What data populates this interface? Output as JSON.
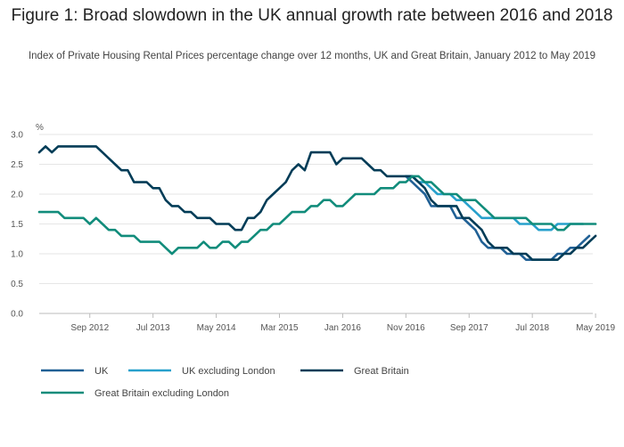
{
  "title": "Figure 1: Broad slowdown in the UK annual growth rate between 2016 and 2018",
  "subtitle": "Index of Private Housing Rental Prices percentage change over 12 months, UK and Great Britain, January 2012 to May 2019",
  "chart_data": {
    "type": "line",
    "ylabel": "%",
    "ylim": [
      0,
      3
    ],
    "yticks": [
      "0.0",
      "0.5",
      "1.0",
      "1.5",
      "2.0",
      "2.5",
      "3.0"
    ],
    "xticks": [
      {
        "label": "Sep 2012",
        "index": 8
      },
      {
        "label": "Jul 2013",
        "index": 18
      },
      {
        "label": "May 2014",
        "index": 28
      },
      {
        "label": "Mar 2015",
        "index": 38
      },
      {
        "label": "Jan 2016",
        "index": 48
      },
      {
        "label": "Nov 2016",
        "index": 58
      },
      {
        "label": "Sep 2017",
        "index": 68
      },
      {
        "label": "Jul 2018",
        "index": 78
      },
      {
        "label": "May 2019",
        "index": 88
      }
    ],
    "grid": true,
    "legend_position": "bottom",
    "x_start": "Jan 2012",
    "x_end": "May 2019",
    "series": [
      {
        "name": "UK",
        "color": "#206095",
        "values": [
          null,
          null,
          null,
          null,
          null,
          null,
          null,
          null,
          null,
          null,
          null,
          null,
          null,
          null,
          null,
          null,
          null,
          null,
          null,
          null,
          null,
          null,
          null,
          null,
          null,
          null,
          null,
          null,
          null,
          null,
          null,
          null,
          null,
          null,
          null,
          null,
          null,
          null,
          null,
          null,
          null,
          null,
          null,
          null,
          null,
          null,
          null,
          null,
          null,
          null,
          null,
          null,
          null,
          null,
          null,
          null,
          null,
          null,
          2.3,
          2.2,
          2.1,
          2.0,
          1.8,
          1.8,
          1.8,
          1.8,
          1.6,
          1.6,
          1.5,
          1.4,
          1.2,
          1.1,
          1.1,
          1.1,
          1.0,
          1.0,
          1.0,
          0.9,
          0.9,
          0.9,
          0.9,
          0.9,
          1.0,
          1.0,
          1.1,
          1.1,
          1.2,
          1.3
        ]
      },
      {
        "name": "UK excluding London",
        "color": "#27a0cc",
        "values": [
          null,
          null,
          null,
          null,
          null,
          null,
          null,
          null,
          null,
          null,
          null,
          null,
          null,
          null,
          null,
          null,
          null,
          null,
          null,
          null,
          null,
          null,
          null,
          null,
          null,
          null,
          null,
          null,
          null,
          null,
          null,
          null,
          null,
          null,
          null,
          null,
          null,
          null,
          null,
          null,
          null,
          null,
          null,
          null,
          null,
          null,
          null,
          null,
          null,
          null,
          null,
          null,
          null,
          null,
          null,
          null,
          null,
          null,
          2.3,
          2.3,
          2.2,
          2.2,
          2.1,
          2.0,
          2.0,
          2.0,
          1.9,
          1.9,
          1.8,
          1.7,
          1.6,
          1.6,
          1.6,
          1.6,
          1.6,
          1.6,
          1.5,
          1.5,
          1.5,
          1.4,
          1.4,
          1.4,
          1.5,
          1.5,
          1.5,
          1.5,
          1.5
        ]
      },
      {
        "name": "Great Britain",
        "color": "#003c57",
        "values": [
          2.7,
          2.8,
          2.7,
          2.8,
          2.8,
          2.8,
          2.8,
          2.8,
          2.8,
          2.8,
          2.7,
          2.6,
          2.5,
          2.4,
          2.4,
          2.2,
          2.2,
          2.2,
          2.1,
          2.1,
          1.9,
          1.8,
          1.8,
          1.7,
          1.7,
          1.6,
          1.6,
          1.6,
          1.5,
          1.5,
          1.5,
          1.4,
          1.4,
          1.6,
          1.6,
          1.7,
          1.9,
          2.0,
          2.1,
          2.2,
          2.4,
          2.5,
          2.4,
          2.7,
          2.7,
          2.7,
          2.7,
          2.5,
          2.6,
          2.6,
          2.6,
          2.6,
          2.5,
          2.4,
          2.4,
          2.3,
          2.3,
          2.3,
          2.3,
          2.3,
          2.2,
          2.1,
          1.9,
          1.8,
          1.8,
          1.8,
          1.8,
          1.6,
          1.6,
          1.5,
          1.4,
          1.2,
          1.1,
          1.1,
          1.1,
          1.0,
          1.0,
          1.0,
          0.9,
          0.9,
          0.9,
          0.9,
          0.9,
          1.0,
          1.0,
          1.1,
          1.1,
          1.2,
          1.3
        ]
      },
      {
        "name": "Great Britain excluding London",
        "color": "#118c7b",
        "values": [
          1.7,
          1.7,
          1.7,
          1.7,
          1.6,
          1.6,
          1.6,
          1.6,
          1.5,
          1.6,
          1.5,
          1.4,
          1.4,
          1.3,
          1.3,
          1.3,
          1.2,
          1.2,
          1.2,
          1.2,
          1.1,
          1.0,
          1.1,
          1.1,
          1.1,
          1.1,
          1.2,
          1.1,
          1.1,
          1.2,
          1.2,
          1.1,
          1.2,
          1.2,
          1.3,
          1.4,
          1.4,
          1.5,
          1.5,
          1.6,
          1.7,
          1.7,
          1.7,
          1.8,
          1.8,
          1.9,
          1.9,
          1.8,
          1.8,
          1.9,
          2.0,
          2.0,
          2.0,
          2.0,
          2.1,
          2.1,
          2.1,
          2.2,
          2.2,
          2.3,
          2.3,
          2.2,
          2.2,
          2.1,
          2.0,
          2.0,
          2.0,
          1.9,
          1.9,
          1.9,
          1.8,
          1.7,
          1.6,
          1.6,
          1.6,
          1.6,
          1.6,
          1.6,
          1.5,
          1.5,
          1.5,
          1.5,
          1.4,
          1.4,
          1.5,
          1.5,
          1.5,
          1.5,
          1.5
        ]
      }
    ]
  }
}
